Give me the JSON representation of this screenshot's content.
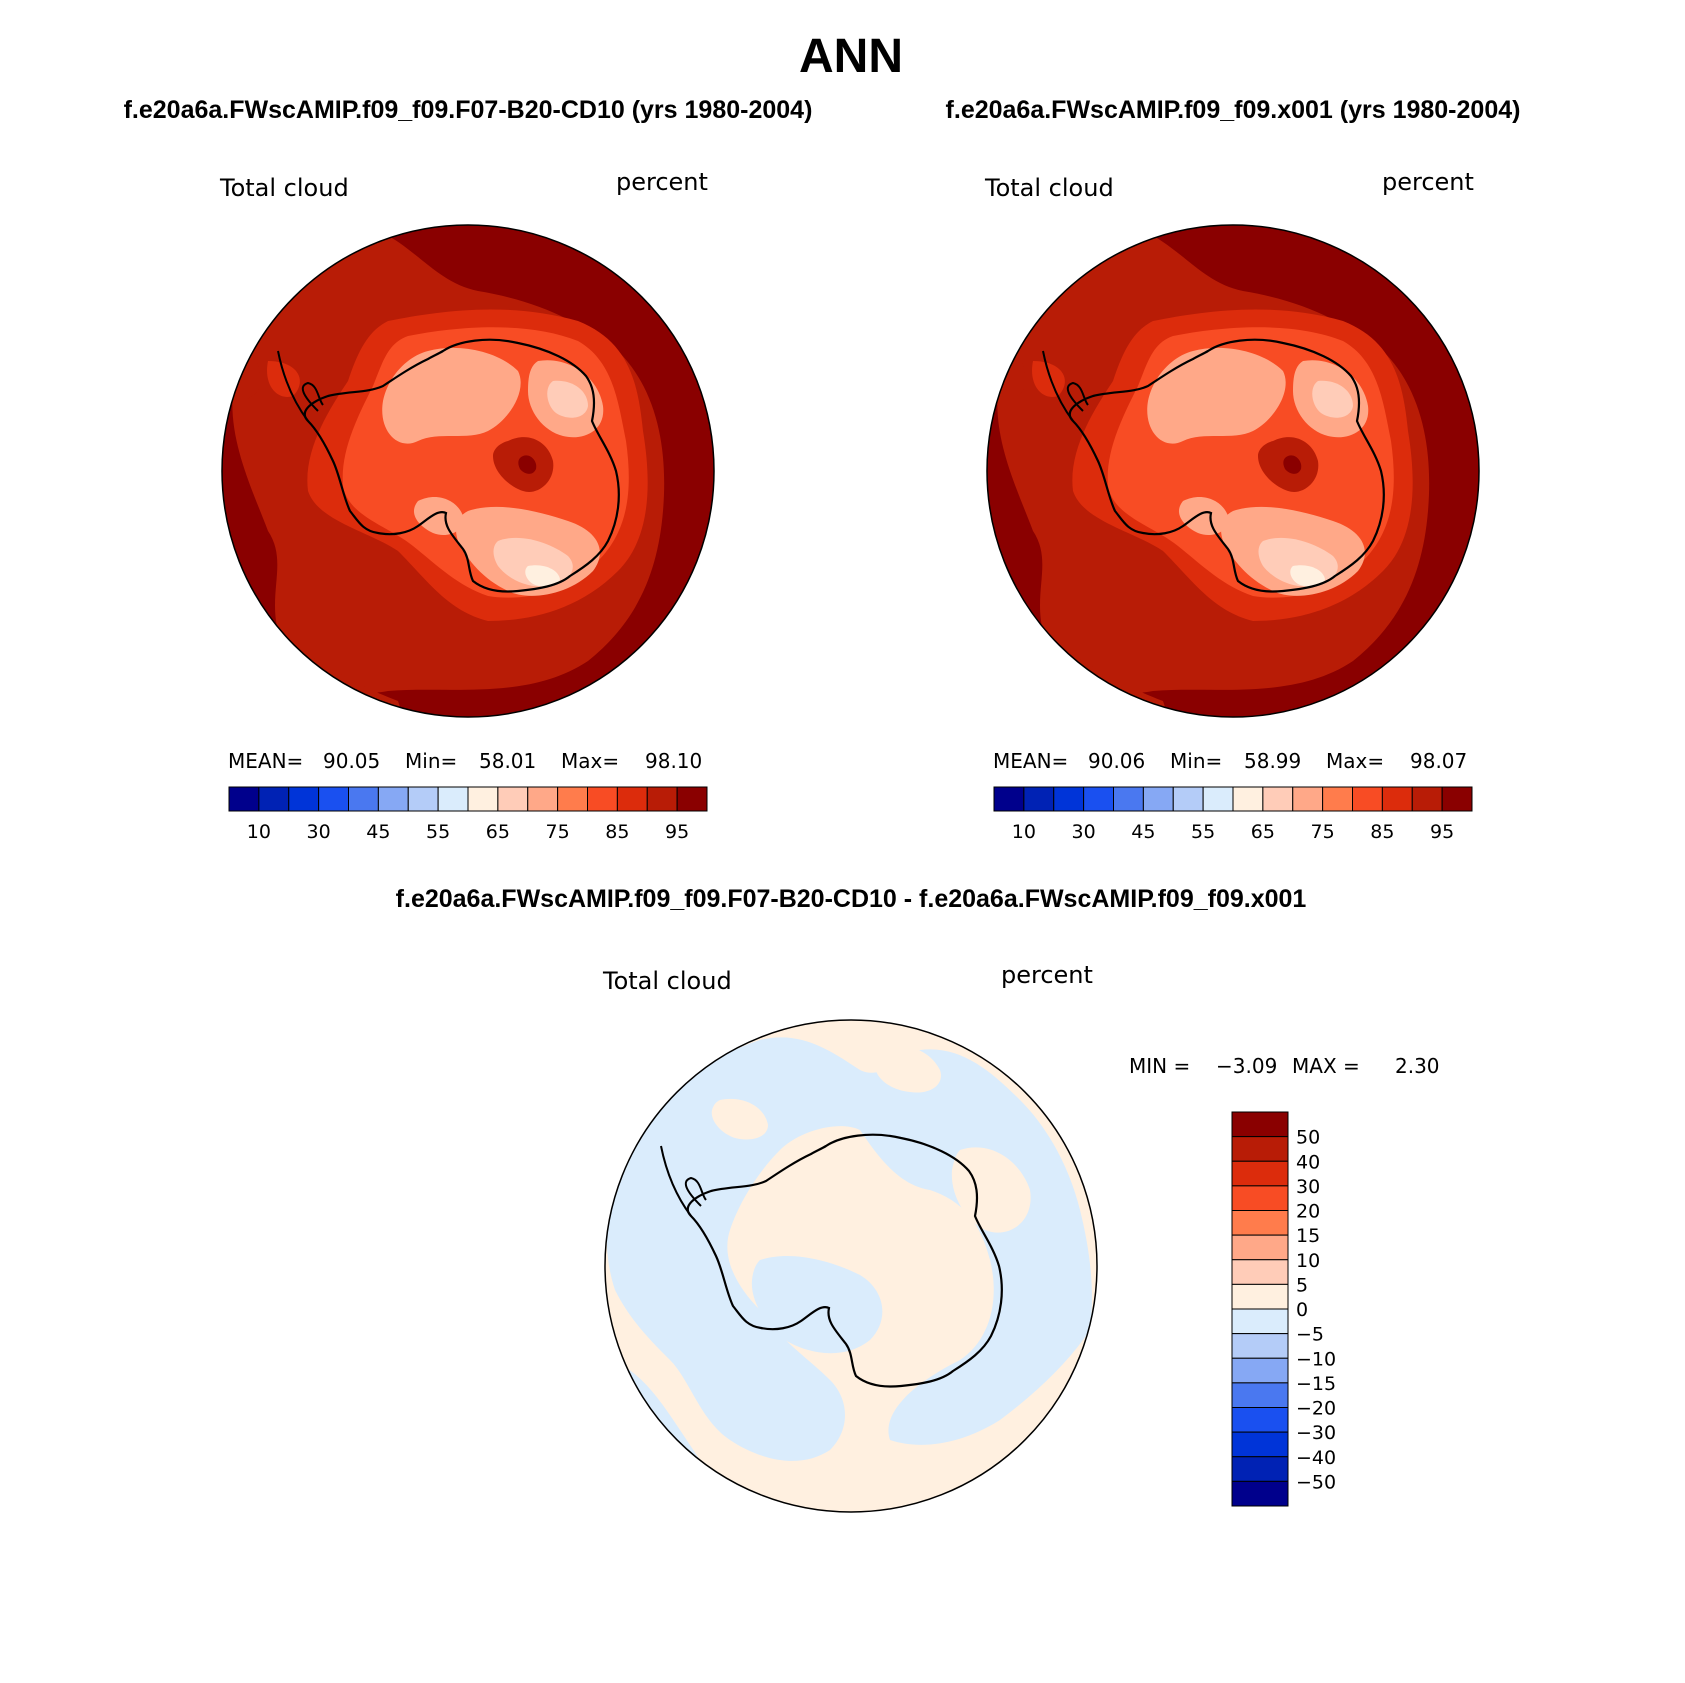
{
  "season": "ANN",
  "panels": [
    {
      "case_title": "f.e20a6a.FWscAMIP.f09_f09.F07-B20-CD10 (yrs 1980-2004)",
      "variable": "Total cloud",
      "units": "percent",
      "stats": {
        "mean_label": "MEAN=",
        "mean": "90.05",
        "min_label": "Min=",
        "min": "58.01",
        "max_label": "Max=",
        "max": "98.10"
      }
    },
    {
      "case_title": "f.e20a6a.FWscAMIP.f09_f09.x001 (yrs 1980-2004)",
      "variable": "Total cloud",
      "units": "percent",
      "stats": {
        "mean_label": "MEAN=",
        "mean": "90.06",
        "min_label": "Min=",
        "min": "58.99",
        "max_label": "Max=",
        "max": "98.07"
      }
    }
  ],
  "diff_panel": {
    "title": "f.e20a6a.FWscAMIP.f09_f09.F07-B20-CD10 - f.e20a6a.FWscAMIP.f09_f09.x001",
    "variable": "Total cloud",
    "units": "percent",
    "stats": {
      "min_label": "MIN =",
      "min": "−3.09",
      "max_label": "MAX =",
      "max": "2.30"
    }
  },
  "chart_data": {
    "type": "polar-stereographic-contour-map",
    "region": "Antarctica / Southern Hemisphere",
    "field_colorbar": {
      "orientation": "horizontal",
      "colors": [
        "#00008c",
        "#0022b4",
        "#0034d8",
        "#1a50f0",
        "#4a78f0",
        "#86a8f4",
        "#b4ccf8",
        "#daecfc",
        "#fff0e0",
        "#ffccb8",
        "#ffa888",
        "#ff7c4c",
        "#f84c24",
        "#dc2c0c",
        "#b81c06",
        "#8a0000"
      ],
      "tick_labels": [
        "10",
        "30",
        "45",
        "55",
        "65",
        "75",
        "85",
        "95"
      ]
    },
    "diff_colorbar": {
      "orientation": "vertical",
      "colors": [
        "#8a0000",
        "#b81c06",
        "#dc2c0c",
        "#f84c24",
        "#ff7c4c",
        "#ffa888",
        "#ffccb8",
        "#fff0e0",
        "#daecfc",
        "#b4ccf8",
        "#86a8f4",
        "#4a78f0",
        "#1a50f0",
        "#0034d8",
        "#0022b4",
        "#00008c"
      ],
      "tick_labels": [
        "50",
        "40",
        "30",
        "20",
        "15",
        "10",
        "5",
        "0",
        "−5",
        "−10",
        "−15",
        "−20",
        "−30",
        "−40",
        "−50"
      ]
    }
  }
}
